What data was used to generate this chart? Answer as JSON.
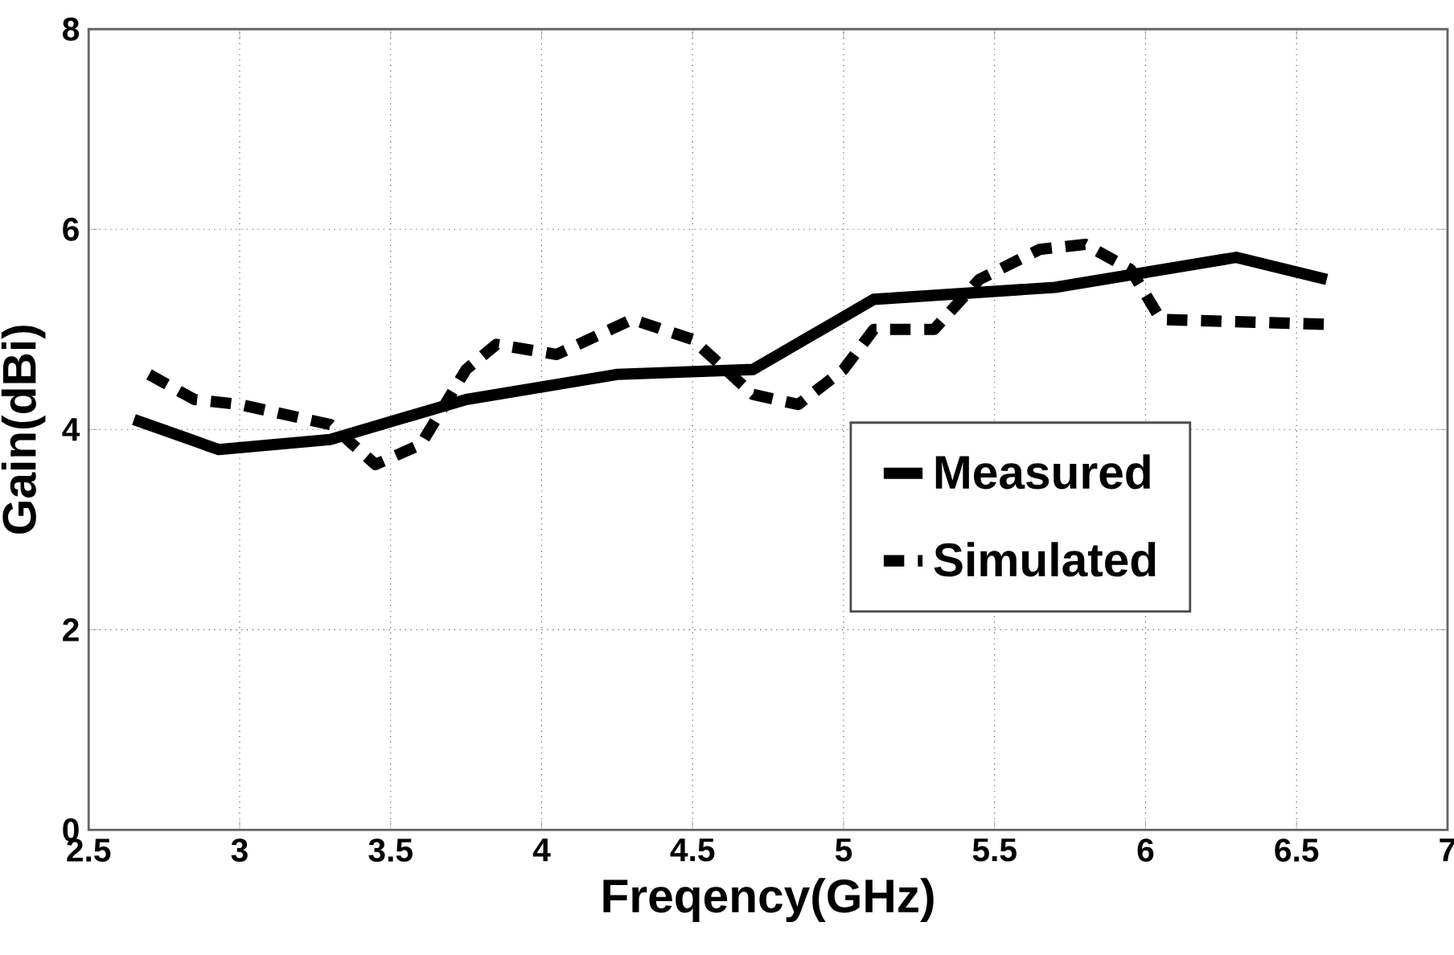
{
  "chart_data": {
    "type": "line",
    "xlabel": "Freqency(GHz)",
    "ylabel": "Gain(dBi)",
    "xlim": [
      2.5,
      7
    ],
    "ylim": [
      0,
      8
    ],
    "xticks": [
      2.5,
      3,
      3.5,
      4,
      4.5,
      5,
      5.5,
      6,
      6.5,
      7
    ],
    "yticks": [
      0,
      2,
      4,
      6,
      8
    ],
    "grid": true,
    "legend": "right",
    "series": [
      {
        "name": "Measured",
        "color": "#000000",
        "line_style": "solid",
        "x": [
          2.65,
          2.93,
          3.3,
          3.75,
          4.25,
          4.7,
          5.1,
          5.7,
          6.3,
          6.6
        ],
        "values": [
          4.1,
          3.8,
          3.9,
          4.3,
          4.55,
          4.6,
          5.3,
          5.42,
          5.72,
          5.5
        ]
      },
      {
        "name": "Simulated",
        "color": "#000000",
        "line_style": "dashed",
        "x": [
          2.7,
          2.85,
          3.0,
          3.3,
          3.45,
          3.6,
          3.75,
          3.85,
          4.05,
          4.3,
          4.5,
          4.7,
          4.85,
          5.0,
          5.1,
          5.3,
          5.45,
          5.65,
          5.8,
          5.95,
          6.05,
          6.6
        ],
        "values": [
          4.55,
          4.3,
          4.25,
          4.05,
          3.65,
          3.85,
          4.6,
          4.85,
          4.75,
          5.1,
          4.9,
          4.35,
          4.25,
          4.6,
          5.0,
          5.0,
          5.5,
          5.8,
          5.85,
          5.6,
          5.1,
          5.05
        ]
      }
    ]
  }
}
